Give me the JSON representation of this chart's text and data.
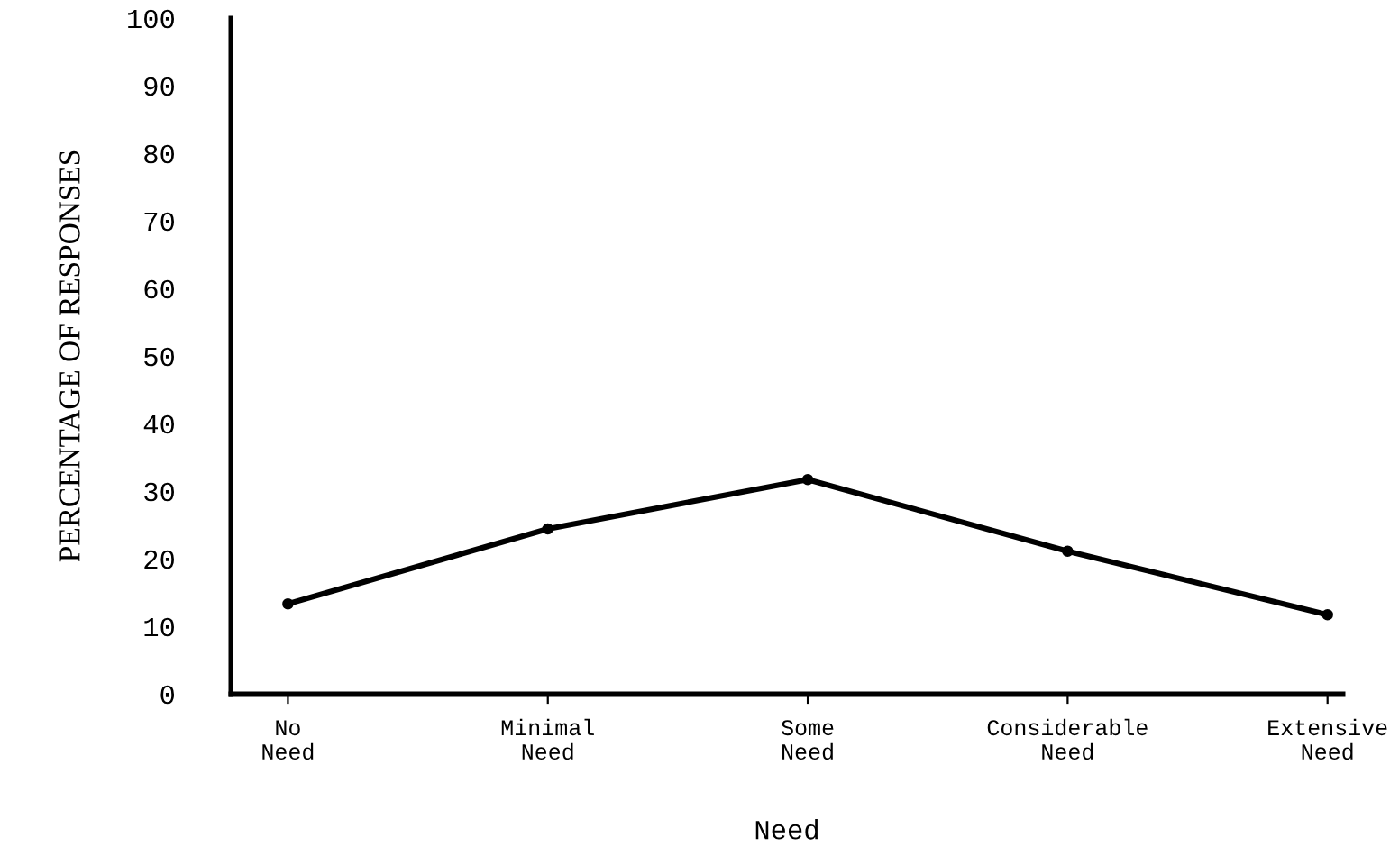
{
  "chart_data": {
    "type": "line",
    "categories": [
      "No\nNeed",
      "Minimal\nNeed",
      "Some\nNeed",
      "Considerable\nNeed",
      "Extensive\nNeed"
    ],
    "series": [
      {
        "color": "#000000",
        "values": [
          13.3,
          24.4,
          31.7,
          21.1,
          11.7
        ]
      }
    ],
    "xlabel": "Need",
    "ylabel": "PERCENTAGE OF RESPONSES",
    "ylim": [
      0,
      100
    ],
    "yticks": [
      0,
      10,
      20,
      30,
      40,
      50,
      60,
      70,
      80,
      90,
      100
    ],
    "grid": false,
    "legend": false,
    "marker": "circle",
    "line_style": "solid"
  }
}
